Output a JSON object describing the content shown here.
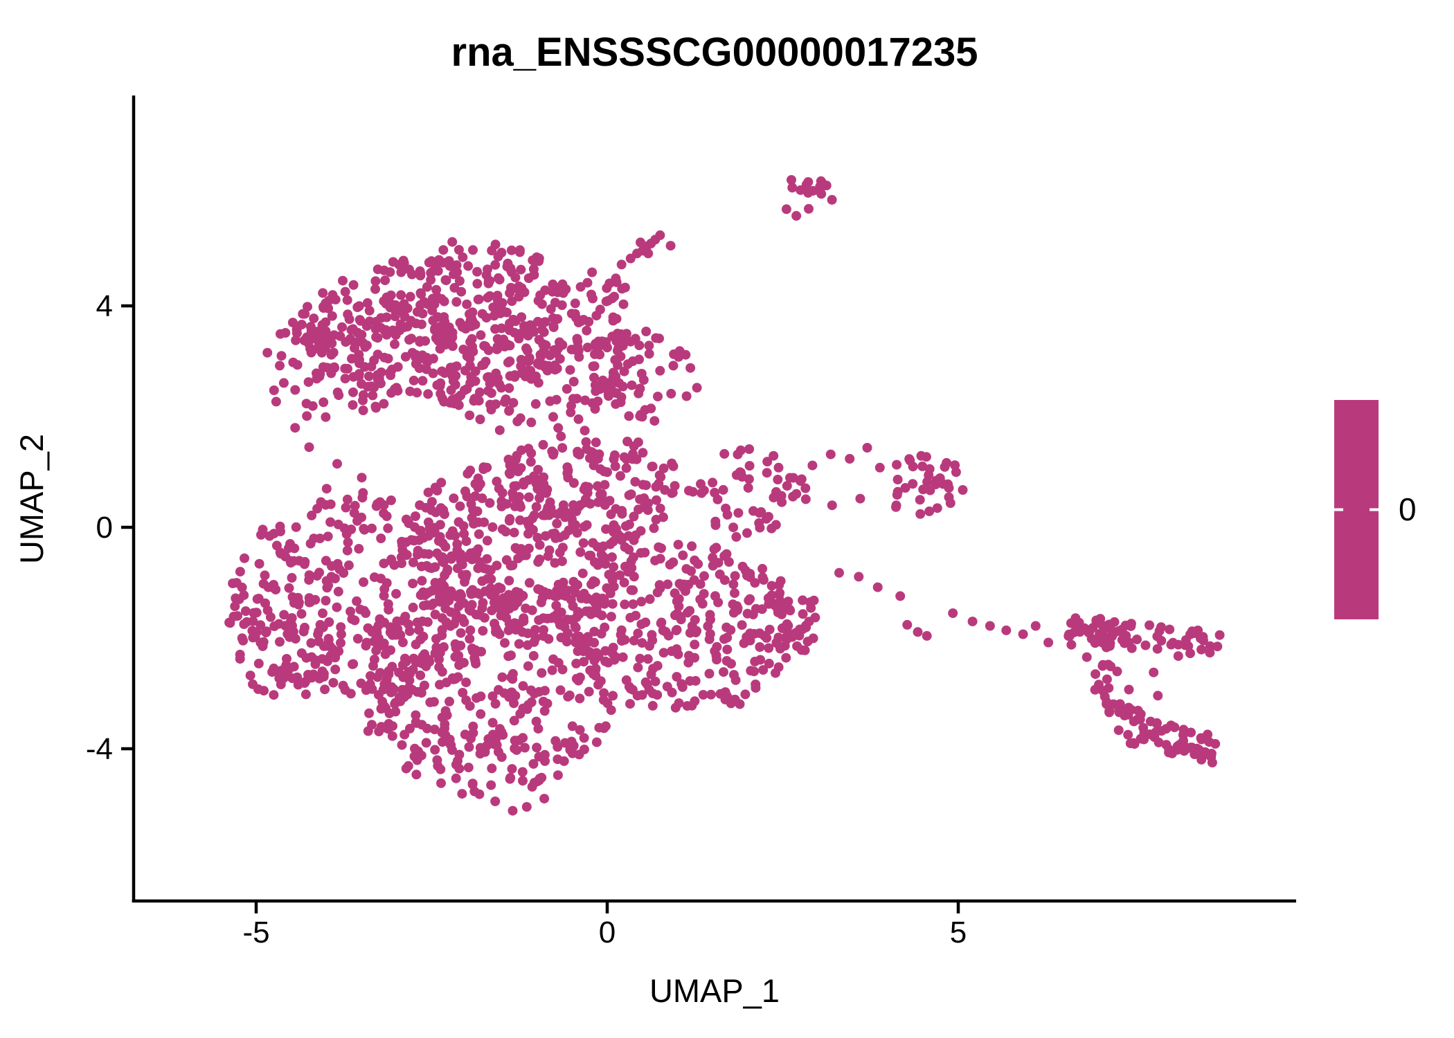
{
  "title": "rna_ENSSSCG00000017235",
  "axis": {
    "x_label": "UMAP_1",
    "y_label": "UMAP_2",
    "x_ticks": [
      "-5",
      "0",
      "5"
    ],
    "y_ticks": [
      "4",
      "0",
      "-4"
    ]
  },
  "legend": {
    "tick_label": "0"
  },
  "colors": {
    "point": "#B93A7C",
    "colorbar": "#B93A7C",
    "axis": "#000000",
    "text": "#000000",
    "legend_tick": "#FFFFFF",
    "background": "#FFFFFF"
  },
  "chart_data": {
    "type": "scatter",
    "title": "rna_ENSSSCG00000017235",
    "xlabel": "UMAP_1",
    "ylabel": "UMAP_2",
    "x_ticks": [
      -5,
      0,
      5
    ],
    "y_ticks": [
      4,
      0,
      -4
    ],
    "xlim": [
      -6.75,
      9.81
    ],
    "ylim": [
      -6.75,
      7.78
    ],
    "grid": false,
    "legend_position": "right",
    "legend_type": "colorbar",
    "legend_value": 0,
    "point_radius_px": 7,
    "n_points_approx": 2400,
    "seed": 13,
    "blobs": [
      {
        "name": "upper-lobe-core",
        "cx": -2.4,
        "cy": 3.6,
        "rx": 2.1,
        "ry": 1.25,
        "n": 300
      },
      {
        "name": "upper-lobe-right",
        "cx": -1.1,
        "cy": 3.05,
        "rx": 1.6,
        "ry": 1.3,
        "n": 180
      },
      {
        "name": "upper-lobe-left-wing",
        "cx": -3.9,
        "cy": 2.9,
        "rx": 1.05,
        "ry": 0.95,
        "n": 70
      },
      {
        "name": "upper-lobe-top-fringe",
        "cx": -2.0,
        "cy": 4.8,
        "rx": 1.35,
        "ry": 0.4,
        "n": 45
      },
      {
        "name": "upper-lobe-ne-corner",
        "cx": -0.25,
        "cy": 4.15,
        "rx": 0.6,
        "ry": 0.55,
        "n": 25
      },
      {
        "name": "upper-lobe-se-bulge",
        "cx": 0.5,
        "cy": 2.8,
        "rx": 0.8,
        "ry": 0.85,
        "n": 50
      },
      {
        "name": "lower-mass-left",
        "cx": -3.5,
        "cy": -1.3,
        "rx": 1.95,
        "ry": 1.9,
        "n": 330
      },
      {
        "name": "lower-mass-bottom",
        "cx": -1.7,
        "cy": -2.9,
        "rx": 1.8,
        "ry": 2.0,
        "n": 330
      },
      {
        "name": "lower-mass-center",
        "cx": -1.3,
        "cy": -0.4,
        "rx": 1.7,
        "ry": 1.6,
        "n": 260
      },
      {
        "name": "lower-mass-right-lobe",
        "cx": 1.1,
        "cy": -1.8,
        "rx": 1.65,
        "ry": 1.5,
        "n": 280
      },
      {
        "name": "mid-band",
        "cx": -0.3,
        "cy": 0.7,
        "rx": 1.4,
        "ry": 1.0,
        "n": 150
      },
      {
        "name": "right-top-extension",
        "cx": 2.0,
        "cy": 0.65,
        "rx": 0.85,
        "ry": 0.85,
        "n": 55
      },
      {
        "name": "right-wedge-tip",
        "cx": 2.55,
        "cy": -1.7,
        "rx": 0.5,
        "ry": 0.65,
        "n": 25
      },
      {
        "name": "far-left-edge",
        "cx": -4.6,
        "cy": -2.1,
        "rx": 0.75,
        "ry": 1.0,
        "n": 45
      },
      {
        "name": "top-small-cluster",
        "cx": 2.88,
        "cy": 6.0,
        "rx": 0.3,
        "ry": 0.32,
        "n": 13,
        "e": 0.6
      },
      {
        "name": "mid-right-cluster",
        "cx": 4.55,
        "cy": 0.8,
        "rx": 0.6,
        "ry": 0.62,
        "n": 36,
        "e": 0.6
      }
    ],
    "bands": [
      {
        "name": "right-cluster-top-band",
        "x1": 6.55,
        "y1": -1.85,
        "x2": 8.7,
        "y2": -2.15,
        "w": 0.55,
        "n": 72
      },
      {
        "name": "right-cluster-diagonal",
        "x1": 6.9,
        "y1": -2.25,
        "x2": 7.45,
        "y2": -3.55,
        "w": 0.45,
        "n": 30
      },
      {
        "name": "right-cluster-bottom-band",
        "x1": 7.3,
        "y1": -3.6,
        "x2": 8.7,
        "y2": -4.05,
        "w": 0.5,
        "n": 55
      }
    ],
    "singles": [
      [
        0.33,
        4.86
      ],
      [
        0.42,
        4.95
      ],
      [
        0.5,
        5.0
      ],
      [
        0.56,
        5.08
      ],
      [
        0.62,
        5.13
      ],
      [
        0.68,
        5.2
      ],
      [
        0.75,
        5.28
      ],
      [
        0.58,
        4.95
      ],
      [
        0.47,
        5.15
      ],
      [
        0.9,
        5.09
      ],
      [
        -0.22,
        4.61
      ],
      [
        0.13,
        4.43
      ],
      [
        0.2,
        4.75
      ],
      [
        2.55,
        5.75
      ],
      [
        2.69,
        5.63
      ],
      [
        2.62,
        6.28
      ],
      [
        3.12,
        6.18
      ],
      [
        2.92,
        1.12
      ],
      [
        3.18,
        1.32
      ],
      [
        3.45,
        1.24
      ],
      [
        3.7,
        1.44
      ],
      [
        3.88,
        1.08
      ],
      [
        3.2,
        0.4
      ],
      [
        3.6,
        0.52
      ],
      [
        3.3,
        -0.82
      ],
      [
        3.58,
        -0.89
      ],
      [
        3.85,
        -1.08
      ],
      [
        4.17,
        -1.24
      ],
      [
        4.27,
        -1.76
      ],
      [
        4.42,
        -1.89
      ],
      [
        4.55,
        -1.96
      ],
      [
        4.92,
        -1.55
      ],
      [
        5.2,
        -1.7
      ],
      [
        5.45,
        -1.78
      ],
      [
        5.68,
        -1.86
      ],
      [
        5.92,
        -1.93
      ],
      [
        6.1,
        -1.78
      ],
      [
        6.28,
        -2.08
      ],
      [
        7.78,
        -2.62
      ],
      [
        7.84,
        -3.04
      ],
      [
        -1.35,
        -5.12
      ],
      [
        -1.15,
        -5.05
      ],
      [
        -1.6,
        -4.95
      ],
      [
        -0.9,
        -4.9
      ],
      [
        -4.25,
        1.45
      ],
      [
        -3.85,
        1.15
      ],
      [
        -3.5,
        0.9
      ],
      [
        -4.0,
        0.7
      ],
      [
        -4.45,
        1.8
      ]
    ]
  }
}
